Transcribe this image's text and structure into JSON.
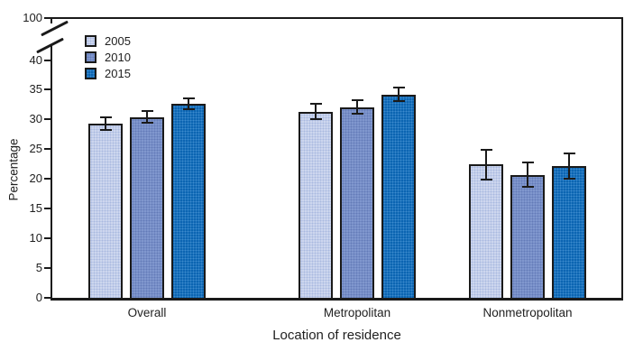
{
  "figure": {
    "background": "#ffffff",
    "axis_color": "#1a1a1a",
    "text_color": "#1f1f1f"
  },
  "chart_data": {
    "type": "bar",
    "title": "",
    "xlabel": "Location of residence",
    "ylabel": "Percentage",
    "categories": [
      "Overall",
      "Metropolitan",
      "Nonmetropolitan"
    ],
    "series": [
      {
        "name": "2005",
        "color": "#cdd6ee",
        "dot_color": "rgba(140,160,212,0.55)",
        "values": [
          29.3,
          31.3,
          22.4
        ],
        "errors": [
          1.1,
          1.3,
          2.5
        ]
      },
      {
        "name": "2010",
        "color": "#8097ce",
        "dot_color": "rgba(55,80,150,0.40)",
        "values": [
          30.4,
          32.1,
          20.7
        ],
        "errors": [
          1.0,
          1.1,
          2.1
        ]
      },
      {
        "name": "2015",
        "color": "#0c65b2",
        "dot_color": "rgba(150,210,255,0.35)",
        "values": [
          32.6,
          34.2,
          22.2
        ],
        "errors": [
          0.9,
          1.1,
          2.1
        ]
      }
    ],
    "error_bars": true,
    "y_ticks": [
      0,
      5,
      10,
      15,
      20,
      25,
      30,
      35,
      40
    ],
    "y_top_tick": 100,
    "axis_break": true,
    "ylim_lower": [
      0,
      40
    ],
    "grid": false,
    "legend_position": "upper-left-inside"
  }
}
